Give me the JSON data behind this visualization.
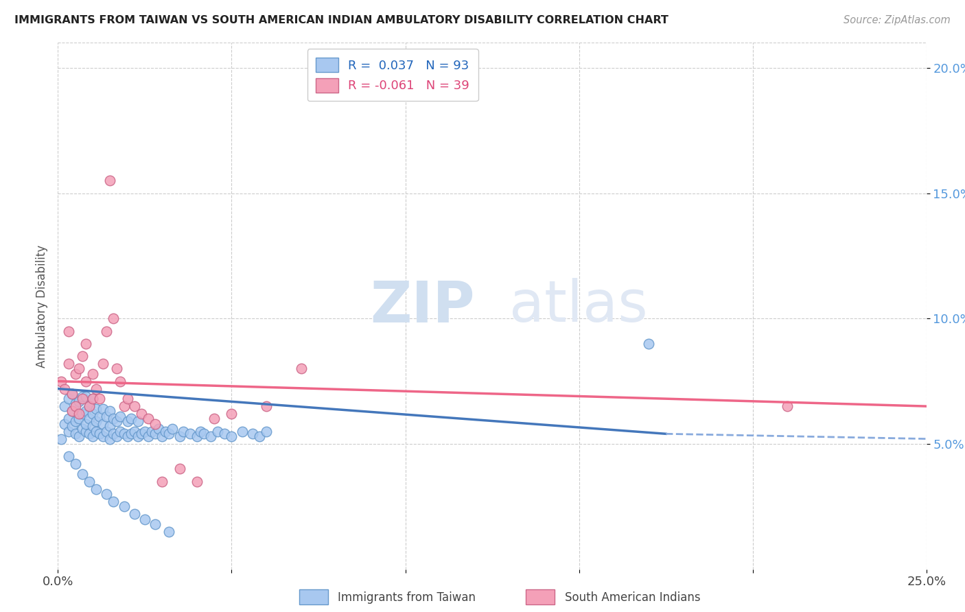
{
  "title": "IMMIGRANTS FROM TAIWAN VS SOUTH AMERICAN INDIAN AMBULATORY DISABILITY CORRELATION CHART",
  "source": "Source: ZipAtlas.com",
  "ylabel": "Ambulatory Disability",
  "xlim": [
    0.0,
    0.25
  ],
  "ylim": [
    0.0,
    0.21
  ],
  "yticks": [
    0.05,
    0.1,
    0.15,
    0.2
  ],
  "ytick_labels": [
    "5.0%",
    "10.0%",
    "15.0%",
    "20.0%"
  ],
  "xticks": [
    0.0,
    0.05,
    0.1,
    0.15,
    0.2,
    0.25
  ],
  "xtick_labels": [
    "0.0%",
    "",
    "",
    "",
    "",
    "25.0%"
  ],
  "taiwan_color": "#A8C8F0",
  "taiwan_edge": "#6699CC",
  "sa_color": "#F4A0B8",
  "sa_edge": "#CC6688",
  "taiwan_R": 0.037,
  "taiwan_N": 93,
  "sa_R": -0.061,
  "sa_N": 39,
  "watermark_zip": "ZIP",
  "watermark_atlas": "atlas",
  "legend_taiwan": "Immigrants from Taiwan",
  "legend_sa": "South American Indians",
  "taiwan_line_color": "#4477BB",
  "taiwan_dash_color": "#88AADD",
  "sa_line_color": "#EE6688",
  "taiwan_x": [
    0.001,
    0.002,
    0.002,
    0.003,
    0.003,
    0.003,
    0.004,
    0.004,
    0.004,
    0.005,
    0.005,
    0.005,
    0.006,
    0.006,
    0.006,
    0.007,
    0.007,
    0.007,
    0.008,
    0.008,
    0.008,
    0.008,
    0.009,
    0.009,
    0.009,
    0.01,
    0.01,
    0.01,
    0.01,
    0.011,
    0.011,
    0.011,
    0.012,
    0.012,
    0.013,
    0.013,
    0.013,
    0.014,
    0.014,
    0.015,
    0.015,
    0.015,
    0.016,
    0.016,
    0.017,
    0.017,
    0.018,
    0.018,
    0.019,
    0.02,
    0.02,
    0.021,
    0.021,
    0.022,
    0.023,
    0.023,
    0.024,
    0.025,
    0.026,
    0.027,
    0.028,
    0.029,
    0.03,
    0.031,
    0.032,
    0.033,
    0.035,
    0.036,
    0.038,
    0.04,
    0.041,
    0.042,
    0.044,
    0.046,
    0.048,
    0.05,
    0.053,
    0.056,
    0.058,
    0.06,
    0.003,
    0.005,
    0.007,
    0.009,
    0.011,
    0.014,
    0.016,
    0.019,
    0.022,
    0.025,
    0.028,
    0.032,
    0.17
  ],
  "taiwan_y": [
    0.052,
    0.058,
    0.065,
    0.055,
    0.06,
    0.068,
    0.057,
    0.063,
    0.07,
    0.054,
    0.059,
    0.066,
    0.053,
    0.06,
    0.067,
    0.056,
    0.062,
    0.069,
    0.055,
    0.058,
    0.063,
    0.069,
    0.054,
    0.06,
    0.065,
    0.053,
    0.057,
    0.062,
    0.068,
    0.055,
    0.059,
    0.064,
    0.054,
    0.061,
    0.053,
    0.058,
    0.064,
    0.055,
    0.061,
    0.052,
    0.057,
    0.063,
    0.054,
    0.06,
    0.053,
    0.059,
    0.055,
    0.061,
    0.054,
    0.053,
    0.059,
    0.054,
    0.06,
    0.055,
    0.053,
    0.059,
    0.054,
    0.055,
    0.053,
    0.055,
    0.054,
    0.056,
    0.053,
    0.055,
    0.054,
    0.056,
    0.053,
    0.055,
    0.054,
    0.053,
    0.055,
    0.054,
    0.053,
    0.055,
    0.054,
    0.053,
    0.055,
    0.054,
    0.053,
    0.055,
    0.045,
    0.042,
    0.038,
    0.035,
    0.032,
    0.03,
    0.027,
    0.025,
    0.022,
    0.02,
    0.018,
    0.015,
    0.09
  ],
  "sa_x": [
    0.001,
    0.002,
    0.003,
    0.003,
    0.004,
    0.004,
    0.005,
    0.005,
    0.006,
    0.006,
    0.007,
    0.007,
    0.008,
    0.008,
    0.009,
    0.01,
    0.01,
    0.011,
    0.012,
    0.013,
    0.014,
    0.015,
    0.016,
    0.017,
    0.018,
    0.019,
    0.02,
    0.022,
    0.024,
    0.026,
    0.028,
    0.03,
    0.035,
    0.04,
    0.045,
    0.05,
    0.06,
    0.07,
    0.21
  ],
  "sa_y": [
    0.075,
    0.072,
    0.082,
    0.095,
    0.063,
    0.07,
    0.065,
    0.078,
    0.062,
    0.08,
    0.068,
    0.085,
    0.075,
    0.09,
    0.065,
    0.068,
    0.078,
    0.072,
    0.068,
    0.082,
    0.095,
    0.155,
    0.1,
    0.08,
    0.075,
    0.065,
    0.068,
    0.065,
    0.062,
    0.06,
    0.058,
    0.035,
    0.04,
    0.035,
    0.06,
    0.062,
    0.065,
    0.08,
    0.065
  ]
}
